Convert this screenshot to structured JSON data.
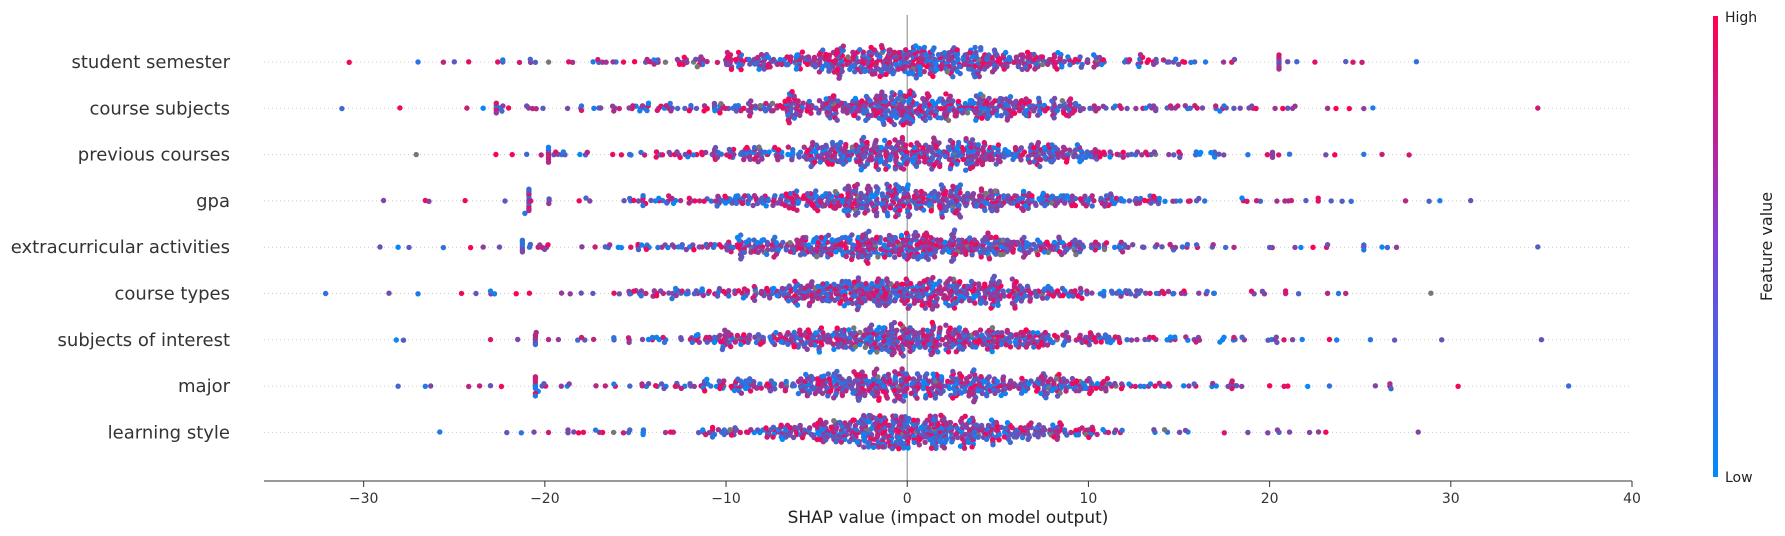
{
  "chart_data": {
    "type": "scatter",
    "subtype": "shap-beeswarm",
    "xlabel": "SHAP value (impact on model output)",
    "xlim": [
      -35.5,
      40
    ],
    "x_ticks": [
      -30,
      -20,
      -10,
      0,
      10,
      20,
      30,
      40
    ],
    "x_tick_labels": [
      "−30",
      "−20",
      "−10",
      "0",
      "10",
      "20",
      "30",
      "40"
    ],
    "colorbar": {
      "title": "Feature value",
      "high_label": "High",
      "low_label": "Low",
      "high_color": "#ff0052",
      "low_color": "#008bfb"
    },
    "grid": false,
    "features": [
      {
        "name": "student semester",
        "spread": 5.5,
        "range": [
          -31,
          28.5
        ],
        "outliers": [
          -30.8,
          -27.0,
          -25.6,
          -25.0,
          -24.2,
          -22.6,
          -21.4,
          21.0,
          21.5,
          22.5,
          24.2,
          24.6,
          25.1,
          28.1
        ]
      },
      {
        "name": "course subjects",
        "spread": 5.5,
        "range": [
          -31.5,
          35
        ],
        "outliers": [
          -31.2,
          -28.0,
          -24.3,
          -23.4,
          -22.0,
          -21.0,
          -20.1,
          21.0,
          21.4,
          23.2,
          24.4,
          25.7,
          34.8
        ]
      },
      {
        "name": "previous courses",
        "spread": 5.3,
        "range": [
          -27.5,
          28
        ],
        "outliers": [
          -27.1,
          -22.7,
          -21.8,
          -21.0,
          -20.2,
          -19.4,
          18.8,
          20.5,
          21.1,
          23.1,
          23.6,
          25.2,
          26.2,
          27.7
        ]
      },
      {
        "name": "gpa",
        "spread": 5.7,
        "range": [
          -29,
          31.5
        ],
        "outliers": [
          -28.9,
          -26.6,
          -26.4,
          -24.4,
          -22.2,
          -21.1,
          21.2,
          22.0,
          23.4,
          24.0,
          24.5,
          27.5,
          28.8,
          29.4,
          31.1
        ]
      },
      {
        "name": "extracurricular activities",
        "spread": 5.6,
        "range": [
          -29.5,
          35
        ],
        "outliers": [
          -29.1,
          -28.1,
          -27.5,
          -25.6,
          -24.1,
          -23.4,
          -22.5,
          20.0,
          21.4,
          23.2,
          26.2,
          26.5,
          27.0,
          34.8
        ]
      },
      {
        "name": "course types",
        "spread": 5.4,
        "range": [
          -32.5,
          29
        ],
        "outliers": [
          -32.1,
          -28.6,
          -27.0,
          -24.6,
          -23.8,
          -23.0,
          19.0,
          19.6,
          21.6,
          23.2,
          23.8,
          24.2,
          28.9
        ]
      },
      {
        "name": "subjects of interest",
        "spread": 5.5,
        "range": [
          -28.5,
          35.5
        ],
        "outliers": [
          -28.2,
          -27.8,
          -23.0,
          -21.5,
          -19.8,
          20.4,
          21.8,
          23.3,
          23.7,
          26.9,
          29.5,
          35.0
        ]
      },
      {
        "name": "major",
        "spread": 5.6,
        "range": [
          -28.5,
          37
        ],
        "outliers": [
          -28.1,
          -26.6,
          -26.3,
          -24.2,
          -23.6,
          -23.0,
          -22.4,
          20.0,
          20.8,
          22.1,
          23.3,
          26.7,
          30.4,
          36.5
        ]
      },
      {
        "name": "learning style",
        "spread": 4.2,
        "range": [
          -26,
          28.5
        ],
        "outliers": [
          -25.8,
          -22.1,
          -21.3,
          -20.6,
          -19.8,
          -17.2,
          17.5,
          18.8,
          19.9,
          21.1,
          22.2,
          22.7,
          23.1,
          28.2
        ]
      }
    ]
  }
}
